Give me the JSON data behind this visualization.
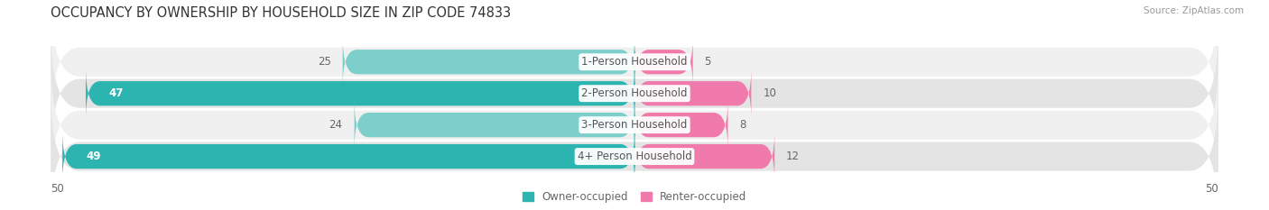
{
  "title": "OCCUPANCY BY OWNERSHIP BY HOUSEHOLD SIZE IN ZIP CODE 74833",
  "source": "Source: ZipAtlas.com",
  "categories": [
    "1-Person Household",
    "2-Person Household",
    "3-Person Household",
    "4+ Person Household"
  ],
  "owner_values": [
    25,
    47,
    24,
    49
  ],
  "renter_values": [
    5,
    10,
    8,
    12
  ],
  "owner_color_strong": "#2cb5b0",
  "owner_color_light": "#7dcfcc",
  "renter_color": "#f07aab",
  "row_bg_colors": [
    "#f0f0f0",
    "#e4e4e4",
    "#f0f0f0",
    "#e4e4e4"
  ],
  "axis_max": 50,
  "label_color": "#666666",
  "value_label_dark": "#ffffff",
  "title_color": "#333333",
  "legend_owner": "Owner-occupied",
  "legend_renter": "Renter-occupied",
  "bar_height": 0.78,
  "label_fontsize": 8.5,
  "title_fontsize": 10.5,
  "source_fontsize": 7.5,
  "cat_label_fontsize": 8.5
}
